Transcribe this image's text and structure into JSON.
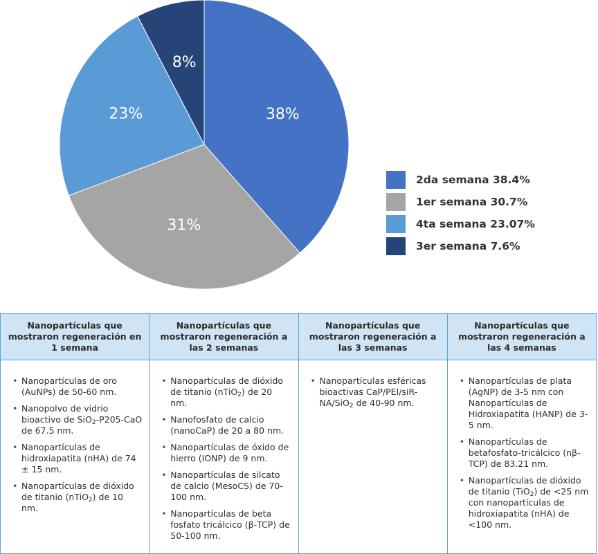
{
  "chart_data": {
    "type": "pie",
    "title": "",
    "slices": [
      {
        "label": "2da semana",
        "value": 38.4,
        "display": "38%",
        "legend": "2da semana 38.4%",
        "color": "#4472c4"
      },
      {
        "label": "1er semana",
        "value": 30.7,
        "display": "31%",
        "legend": "1er semana 30.7%",
        "color": "#a5a5a5"
      },
      {
        "label": "4ta semana",
        "value": 23.07,
        "display": "23%",
        "legend": "4ta semana 23.07%",
        "color": "#5b9bd5"
      },
      {
        "label": "3er semana",
        "value": 7.6,
        "display": "8%",
        "legend": "3er semana 7.6%",
        "color": "#264478"
      }
    ],
    "start_angle_deg": 0,
    "direction": "clockwise",
    "legend_position": "right"
  },
  "table": {
    "headers": [
      "Nanopartículas que mostraron regeneración en 1 semana",
      "Nanopartículas que mostraron regeneración a las 2 semanas",
      "Nanopartículas que mostraron regeneración a las 3 semanas",
      "Nanopartículas que mostraron regeneración a las 4 semanas"
    ],
    "columns": [
      [
        "Nanopartículas de oro (AuNPs) de 50-60 nm.",
        "Nanopolvo de vidrio bioactivo de SiO₂-P205-CaO de 67.5 nm.",
        "Nanopartículas de hidroxiapatita (nHA) de 74 ± 15 nm.",
        "Nanopartículas de dióxido de titanio (nTiO₂) de 10 nm."
      ],
      [
        "Nanopartículas de dióxido de titanio (nTiO₂) de 20 nm.",
        "Nanofosfato de calcio (nanoCaP) de 20 a 80 nm.",
        "Nanopartículas de óxido de hierro (IONP) de 9 nm.",
        "Nanopartículas de silcato de calcio (MesoCS) de 70-100 nm.",
        "Nanopartículas de beta fosfato tricálcico (β-TCP) de 50-100 nm."
      ],
      [
        "Nanopartículas esféricas bioactivas CaP/PEI/siR-NA/SiO₂ de 40-90 nm."
      ],
      [
        "Nanopartículas de plata (AgNP) de 3-5 nm con Nanopartículas de Hidroxiapatita (HANP) de 3-5 nm.",
        "Nanopartículas de betafosfato-tricálcico (nβ-TCP) de 83.21 nm.",
        "Nanopartículas de dióxido de titanio (TiO₂) de <25 nm con nanopartículas de hidroxiapatita (nHA) de <100 nm."
      ]
    ]
  }
}
